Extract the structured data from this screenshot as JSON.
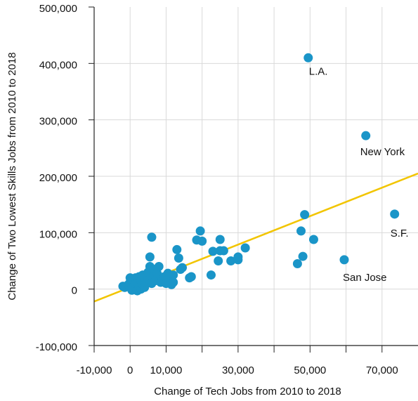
{
  "chart_data": {
    "type": "scatter",
    "title": "",
    "xlabel": "Change of Tech Jobs from 2010 to 2018",
    "ylabel": "Change of Two Lowest Skills Jobs from 2010 to 2018",
    "xlim": [
      -10000,
      80000
    ],
    "ylim": [
      -100000,
      500000
    ],
    "x_ticks": [
      -10000,
      0,
      10000,
      20000,
      30000,
      40000,
      50000,
      60000,
      70000
    ],
    "x_tick_labels": [
      "-10,000",
      "0",
      "10,000",
      "",
      "30,000",
      "",
      "50,000",
      "",
      "70,000"
    ],
    "y_ticks": [
      -100000,
      0,
      100000,
      200000,
      300000,
      400000,
      500000
    ],
    "y_tick_labels": [
      "-100,000",
      "0",
      "100,000",
      "200,000",
      "300,000",
      "400,000",
      "500,000"
    ],
    "grid": true,
    "legend": "none",
    "colors": {
      "points": "#1a95c8",
      "trend_line": "#f2c500",
      "grid": "#d9d9d9",
      "axis": "#222222"
    },
    "trend_line": {
      "x": [
        -10000,
        80000
      ],
      "y": [
        -22000,
        205000
      ]
    },
    "series": [
      {
        "x": [
          49500,
          65500,
          73500,
          59500,
          -2000,
          -1500,
          -500,
          0,
          0,
          500,
          500,
          1000,
          1000,
          1500,
          1500,
          2000,
          2000,
          2500,
          2500,
          3000,
          3000,
          3500,
          3500,
          4000,
          4000,
          4500,
          5000,
          5000,
          5500,
          5500,
          6000,
          6000,
          6500,
          6500,
          7000,
          7500,
          8000,
          8500,
          9000,
          9500,
          10000,
          10500,
          11000,
          11500,
          12000,
          12000,
          13000,
          13500,
          14000,
          14500,
          16500,
          17000,
          18500,
          19500,
          20000,
          22500,
          23000,
          24500,
          25000,
          25000,
          26000,
          28000,
          30000,
          30000,
          32000,
          46500,
          47500,
          48000,
          48500,
          51000
        ],
        "y": [
          410000,
          272000,
          133000,
          52000,
          5000,
          3000,
          8000,
          12000,
          20000,
          -2000,
          15000,
          5000,
          18000,
          10000,
          20000,
          -3000,
          12000,
          5000,
          22000,
          15000,
          0,
          25000,
          8000,
          20000,
          3000,
          12000,
          18000,
          30000,
          40000,
          57000,
          92000,
          10000,
          25000,
          35000,
          15000,
          28000,
          40000,
          12000,
          18000,
          22000,
          10000,
          28000,
          20000,
          8000,
          25000,
          12000,
          70000,
          55000,
          35000,
          38000,
          20000,
          22000,
          87000,
          103000,
          85000,
          25000,
          67000,
          50000,
          88000,
          68000,
          68000,
          50000,
          52000,
          57000,
          73000,
          45000,
          103000,
          58000,
          132000,
          88000
        ]
      }
    ],
    "annotations": [
      {
        "text": "L.A.",
        "x": 49500,
        "y": 410000
      },
      {
        "text": "New York",
        "x": 65500,
        "y": 272000
      },
      {
        "text": "S.F.",
        "x": 73500,
        "y": 133000
      },
      {
        "text": "San Jose",
        "x": 59500,
        "y": 52000
      }
    ]
  }
}
